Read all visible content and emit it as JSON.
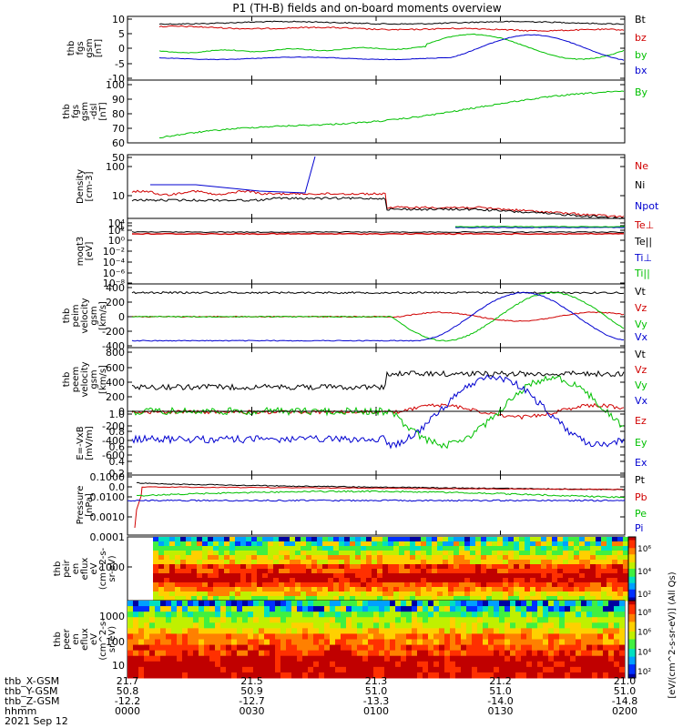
{
  "title": "P1  (TH-B) fields and on-board moments overview",
  "colors": {
    "black": "#000000",
    "red": "#d00000",
    "green": "#00c000",
    "blue": "#0000d0",
    "axis": "#000000"
  },
  "time_axis": {
    "rows": [
      {
        "label": "thb_X-GSM",
        "values": [
          "21.7",
          "21.5",
          "21.3",
          "21.2",
          "21.0"
        ]
      },
      {
        "label": "thb_Y-GSM",
        "values": [
          "50.8",
          "50.9",
          "51.0",
          "51.0",
          "51.0"
        ]
      },
      {
        "label": "thb_Z-GSM",
        "values": [
          "-12.2",
          "-12.7",
          "-13.3",
          "-14.0",
          "-14.8"
        ]
      },
      {
        "label": "hhmm",
        "values": [
          "0000",
          "0030",
          "0100",
          "0130",
          "0200"
        ]
      }
    ],
    "date": "2021 Sep 12"
  },
  "chart_data": [
    {
      "type": "line",
      "ylabel": [
        "thb",
        "fgs",
        "gsm",
        "[nT]"
      ],
      "ylim": [
        -10,
        10
      ],
      "yticks": [
        "10",
        "5",
        "0",
        "-5",
        "-10"
      ],
      "ytick_values": [
        10,
        5,
        0,
        -5,
        -10
      ],
      "legend": [
        {
          "name": "Bt",
          "color": "#000000"
        },
        {
          "name": "bz",
          "color": "#d00000"
        },
        {
          "name": "by",
          "color": "#00c000"
        },
        {
          "name": "bx",
          "color": "#0000d0"
        }
      ]
    },
    {
      "type": "line",
      "ylabel": [
        "thb",
        "fgs",
        "gsm",
        "-dsl",
        "[nT]"
      ],
      "ylim": [
        40,
        100
      ],
      "yticks": [
        "100",
        "90",
        "80",
        "70",
        "60",
        "50"
      ],
      "ytick_values": [
        100,
        90,
        80,
        70,
        60,
        50
      ],
      "legend": [
        {
          "name": "By",
          "color": "#00c000"
        }
      ]
    },
    {
      "type": "line",
      "scale": "log",
      "ylabel": [
        "Density",
        "[cm-3]"
      ],
      "ylim": [
        1,
        300
      ],
      "yticks": [
        "100",
        "10",
        "1"
      ],
      "ytick_values": [
        100,
        10,
        1
      ],
      "legend": [
        {
          "name": "Ne",
          "color": "#d00000"
        },
        {
          "name": "Ni",
          "color": "#000000"
        },
        {
          "name": "Npot",
          "color": "#0000d0"
        }
      ]
    },
    {
      "type": "line",
      "scale": "log",
      "ylabel": [
        "moqt3",
        "[eV]"
      ],
      "ylim": [
        1e-08,
        10000.0
      ],
      "yticks": [
        "10⁴",
        "10²",
        "10⁰",
        "10⁻²",
        "10⁻⁴",
        "10⁻⁶",
        "10⁻⁸"
      ],
      "ytick_values": [
        4,
        2,
        0,
        -2,
        -4,
        -6,
        -8
      ],
      "legend": [
        {
          "name": "Te⊥",
          "color": "#d00000"
        },
        {
          "name": "Te||",
          "color": "#000000"
        },
        {
          "name": "Ti⊥",
          "color": "#0000d0"
        },
        {
          "name": "Ti||",
          "color": "#00c000"
        }
      ]
    },
    {
      "type": "line",
      "ylabel": [
        "thb",
        "peim",
        "velocity",
        "gsm",
        "[km/s]"
      ],
      "ylim": [
        -400,
        400
      ],
      "yticks": [
        "400",
        "200",
        "0",
        "-200",
        "-400"
      ],
      "ytick_values": [
        400,
        200,
        0,
        -200,
        -400
      ],
      "legend": [
        {
          "name": "Vt",
          "color": "#000000"
        },
        {
          "name": "Vz",
          "color": "#d00000"
        },
        {
          "name": "Vy",
          "color": "#00c000"
        },
        {
          "name": "Vx",
          "color": "#0000d0"
        }
      ]
    },
    {
      "type": "line",
      "ylabel": [
        "thb",
        "peem",
        "velocity",
        "gsm",
        "[km/s]"
      ],
      "ylim": [
        -600,
        800
      ],
      "yticks": [
        "800",
        "600",
        "400",
        "200",
        "0",
        "-200",
        "-400",
        "-600"
      ],
      "ytick_values": [
        800,
        600,
        400,
        200,
        0,
        -200,
        -400,
        -600
      ],
      "legend": [
        {
          "name": "Vt",
          "color": "#000000"
        },
        {
          "name": "Vz",
          "color": "#d00000"
        },
        {
          "name": "Vy",
          "color": "#00c000"
        },
        {
          "name": "Vx",
          "color": "#0000d0"
        }
      ]
    },
    {
      "type": "line",
      "ylabel": [
        "E=-VxB",
        "[mV/m]"
      ],
      "ylim": [
        0,
        1
      ],
      "yticks": [
        "1.0",
        "0.8",
        "0.6",
        "0.4",
        "0.2",
        "0.0"
      ],
      "ytick_values": [
        1.0,
        0.8,
        0.6,
        0.4,
        0.2,
        0.0
      ],
      "legend": [
        {
          "name": "Ez",
          "color": "#d00000"
        },
        {
          "name": "Ey",
          "color": "#00c000"
        },
        {
          "name": "Ex",
          "color": "#0000d0"
        }
      ]
    },
    {
      "type": "line",
      "scale": "log",
      "ylabel": [
        "Pressure",
        "[nPa]"
      ],
      "ylim": [
        0.0001,
        0.1
      ],
      "yticks": [
        "0.1000",
        "0.0100",
        "0.0010",
        "0.0001"
      ],
      "ytick_values": [
        -1,
        -2,
        -3,
        -4
      ],
      "legend": [
        {
          "name": "Pt",
          "color": "#000000"
        },
        {
          "name": "Pb",
          "color": "#d00000"
        },
        {
          "name": "Pe",
          "color": "#00c000"
        },
        {
          "name": "Pi",
          "color": "#0000d0"
        }
      ]
    },
    {
      "type": "heatmap",
      "ylabel": [
        "thb",
        "peir",
        "en",
        "eflux",
        "eV",
        "(cm^2-s-",
        "sr-eV)"
      ],
      "yticks": [
        "1000"
      ],
      "colorbar_ticks": [
        "10⁶",
        "10⁴",
        "10²"
      ]
    },
    {
      "type": "heatmap",
      "ylabel": [
        "thb",
        "peer",
        "en",
        "eflux",
        "eV",
        "(cm^2-s-",
        "sr-eV)"
      ],
      "yticks": [
        "1000",
        "100",
        "10"
      ],
      "colorbar_ticks": [
        "10⁸",
        "10⁶",
        "10⁴",
        "10²"
      ]
    }
  ],
  "colorbar_label": "[eV/(cm^2-s-sr-eV)] (All Qs)"
}
